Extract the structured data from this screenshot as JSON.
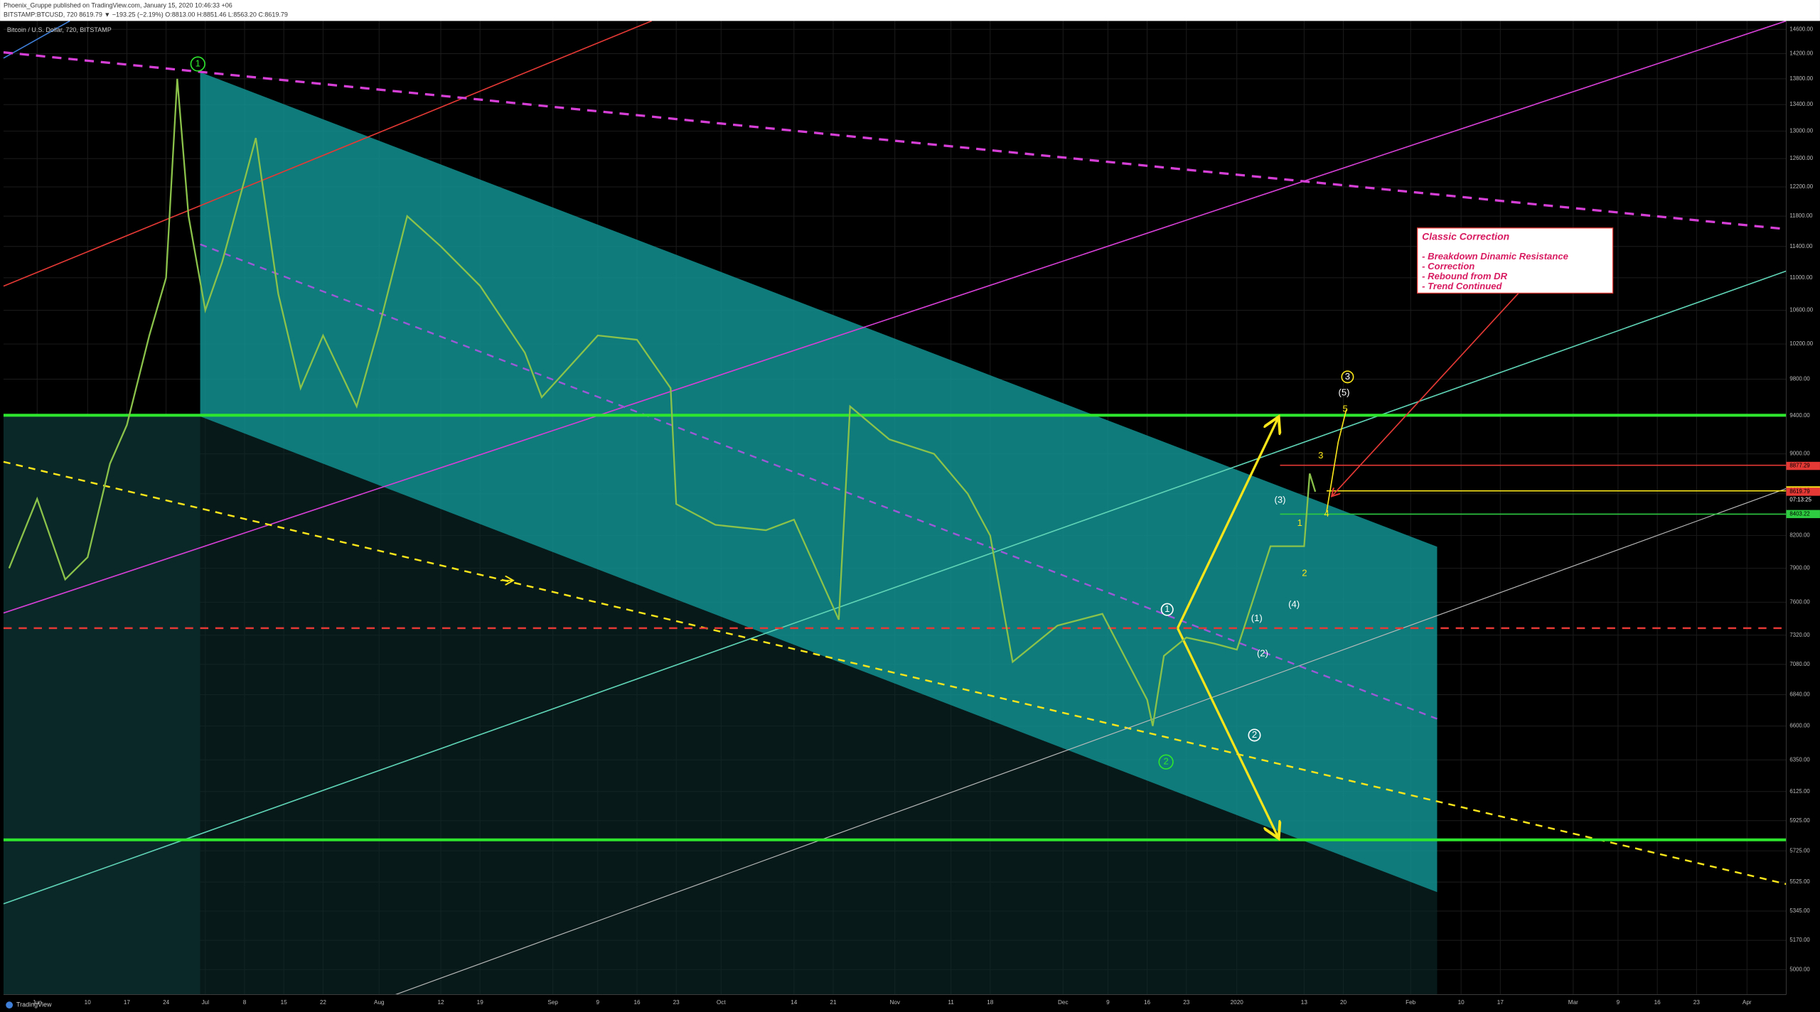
{
  "header": {
    "publisher": "Phoenix_Gruppe published on TradingView.com, January 15, 2020 10:46:33 +06",
    "symbol_line": "BITSTAMP:BTCUSD, 720  8619.79 ▼ −193.25 (−2.19%) O:8813.00 H:8851.46 L:8563.20 C:8619.79",
    "logo": "TradingView"
  },
  "chart_data": {
    "type": "line",
    "title": "Bitcoin / U.S. Dollar, 720, BITSTAMP",
    "series": [
      {
        "name": "BTCUSD",
        "color": "#8bc34a",
        "x": [
          -5,
          0,
          5,
          9,
          13,
          16,
          20,
          23,
          25,
          27,
          30,
          33,
          37,
          39,
          43,
          47,
          51,
          57,
          61,
          66,
          72,
          79,
          87,
          90,
          100,
          107,
          113,
          114,
          121,
          130,
          135,
          143,
          145,
          152,
          160,
          166,
          170,
          174,
          182,
          190,
          198,
          199,
          201,
          205,
          210,
          214,
          220,
          226,
          227,
          228
        ],
        "values": [
          7900,
          8550,
          7800,
          8000,
          8900,
          9300,
          10300,
          11000,
          13800,
          11800,
          10600,
          11200,
          12300,
          12900,
          10800,
          9700,
          10300,
          9500,
          10400,
          11800,
          11400,
          10900,
          10100,
          9600,
          10300,
          10250,
          9700,
          8500,
          8300,
          8250,
          8350,
          7450,
          9500,
          9150,
          9000,
          8600,
          8200,
          7100,
          7400,
          7500,
          6800,
          6600,
          7150,
          7300,
          7250,
          7200,
          8100,
          8100,
          8800,
          8620
        ]
      }
    ],
    "xlim": [
      -6,
      312
    ],
    "xticks": [
      {
        "value": 0,
        "label": "Jun"
      },
      {
        "value": 9,
        "label": "10"
      },
      {
        "value": 16,
        "label": "17"
      },
      {
        "value": 23,
        "label": "24"
      },
      {
        "value": 30,
        "label": "Jul"
      },
      {
        "value": 37,
        "label": "8"
      },
      {
        "value": 44,
        "label": "15"
      },
      {
        "value": 51,
        "label": "22"
      },
      {
        "value": 61,
        "label": "Aug"
      },
      {
        "value": 72,
        "label": "12"
      },
      {
        "value": 79,
        "label": "19"
      },
      {
        "value": 92,
        "label": "Sep"
      },
      {
        "value": 100,
        "label": "9"
      },
      {
        "value": 107,
        "label": "16"
      },
      {
        "value": 114,
        "label": "23"
      },
      {
        "value": 122,
        "label": "Oct"
      },
      {
        "value": 135,
        "label": "14"
      },
      {
        "value": 142,
        "label": "21"
      },
      {
        "value": 153,
        "label": "Nov"
      },
      {
        "value": 163,
        "label": "11"
      },
      {
        "value": 170,
        "label": "18"
      },
      {
        "value": 183,
        "label": "Dec"
      },
      {
        "value": 191,
        "label": "9"
      },
      {
        "value": 198,
        "label": "16"
      },
      {
        "value": 205,
        "label": "23"
      },
      {
        "value": 214,
        "label": "2020"
      },
      {
        "value": 226,
        "label": "13"
      },
      {
        "value": 233,
        "label": "20"
      },
      {
        "value": 245,
        "label": "Feb"
      },
      {
        "value": 254,
        "label": "10"
      },
      {
        "value": 261,
        "label": "17"
      },
      {
        "value": 274,
        "label": "Mar"
      },
      {
        "value": 282,
        "label": "9"
      },
      {
        "value": 289,
        "label": "16"
      },
      {
        "value": 296,
        "label": "23"
      },
      {
        "value": 305,
        "label": "Apr"
      }
    ],
    "ylim": [
      4860,
      14740
    ],
    "log_scale": true,
    "grid": true,
    "yticks": [
      {
        "value": 14600,
        "label": "14600.00"
      },
      {
        "value": 14200,
        "label": "14200.00"
      },
      {
        "value": 13800,
        "label": "13800.00"
      },
      {
        "value": 13400,
        "label": "13400.00"
      },
      {
        "value": 13000,
        "label": "13000.00"
      },
      {
        "value": 12600,
        "label": "12600.00"
      },
      {
        "value": 12200,
        "label": "12200.00"
      },
      {
        "value": 11800,
        "label": "11800.00"
      },
      {
        "value": 11400,
        "label": "11400.00"
      },
      {
        "value": 11000,
        "label": "11000.00"
      },
      {
        "value": 10600,
        "label": "10600.00"
      },
      {
        "value": 10200,
        "label": "10200.00"
      },
      {
        "value": 9800,
        "label": "9800.00"
      },
      {
        "value": 9400,
        "label": "9400.00"
      },
      {
        "value": 9000,
        "label": "9000.00"
      },
      {
        "value": 8600,
        "label": "8600.00"
      },
      {
        "value": 8200,
        "label": "8200.00"
      },
      {
        "value": 7900,
        "label": "7900.00"
      },
      {
        "value": 7600,
        "label": "7600.00"
      },
      {
        "value": 7320,
        "label": "7320.00"
      },
      {
        "value": 7080,
        "label": "7080.00"
      },
      {
        "value": 6840,
        "label": "6840.00"
      },
      {
        "value": 6600,
        "label": "6600.00"
      },
      {
        "value": 6350,
        "label": "6350.00"
      },
      {
        "value": 6125,
        "label": "6125.00"
      },
      {
        "value": 5925,
        "label": "5925.00"
      },
      {
        "value": 5725,
        "label": "5725.00"
      },
      {
        "value": 5525,
        "label": "5525.00"
      },
      {
        "value": 5345,
        "label": "5345.00"
      },
      {
        "value": 5170,
        "label": "5170.00"
      },
      {
        "value": 5000,
        "label": "5000.00"
      }
    ],
    "price_tags": [
      {
        "value": 8877.29,
        "label": "8877.29",
        "color": "#e53935"
      },
      {
        "value": 8633.13,
        "label": "8633.13",
        "color": "#f9e51a"
      },
      {
        "value": 8619.79,
        "label": "8619.79",
        "color": "#e53935"
      },
      {
        "value": 8403.22,
        "label": "8403.22",
        "color": "#2ecc40"
      }
    ],
    "countdown": "07:13:25",
    "annotation": {
      "title": "Classic Correction",
      "lines": [
        "- Breakdown Dinamic Resistance",
        "- Correction",
        "- Rebound from DR",
        "- Trend Continued"
      ]
    },
    "wave_labels": [
      "1",
      "2",
      "1",
      "2",
      "(1)",
      "(2)",
      "(3)",
      "(4)",
      "(5)",
      "3",
      "5",
      "3",
      "1",
      "2",
      "4"
    ]
  }
}
